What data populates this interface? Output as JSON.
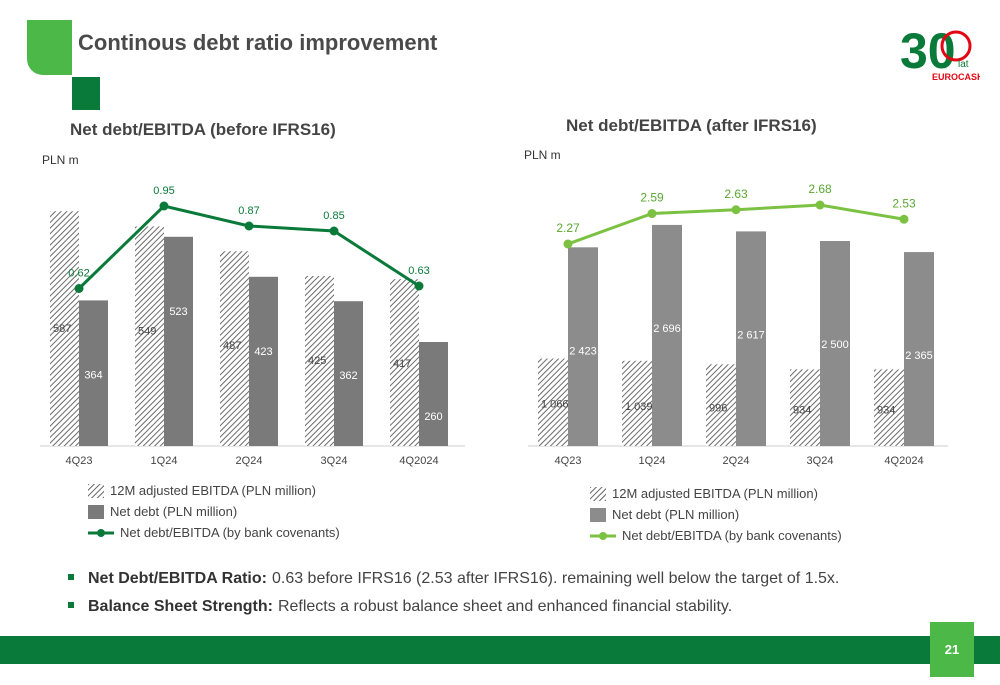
{
  "slide": {
    "title": "Continous debt ratio improvement",
    "page_number": "21",
    "colors": {
      "dark_green": "#0a7a3a",
      "light_green": "#4cb848",
      "dark_bar": "#7a7a7a",
      "mid_bar": "#8c8c8c"
    }
  },
  "logo": {
    "number": "30",
    "suffix": "lat",
    "brand": "EUROCASH"
  },
  "legend_left": {
    "items": [
      "12M adjusted EBITDA (PLN million)",
      "Net debt (PLN million)",
      "Net debt/EBITDA (by bank covenants)"
    ]
  },
  "legend_right": {
    "items": [
      "12M adjusted EBITDA (PLN million)",
      "Net debt (PLN million)",
      "Net debt/EBITDA (by bank covenants)"
    ]
  },
  "bullets": [
    {
      "label": "Net Debt/EBITDA Ratio:",
      "text": "0.63 before IFRS16 (2.53 after IFRS16). remaining well below the target of 1.5x."
    },
    {
      "label": "Balance Sheet Strength:",
      "text": "Reflects a robust balance sheet and enhanced financial stability."
    }
  ],
  "chart_data": [
    {
      "type": "bar",
      "title": "Net debt/EBITDA (before IFRS16)",
      "unit_label": "PLN m",
      "categories": [
        "4Q23",
        "1Q24",
        "2Q24",
        "3Q24",
        "4Q2024"
      ],
      "series": [
        {
          "name": "12M adjusted EBITDA (PLN million)",
          "kind": "bar-hatched",
          "values": [
            587,
            549,
            487,
            425,
            417
          ],
          "labels": [
            "587",
            "549",
            "487",
            "425",
            "417"
          ]
        },
        {
          "name": "Net debt (PLN million)",
          "kind": "bar",
          "values": [
            364,
            523,
            423,
            362,
            260
          ],
          "labels": [
            "364",
            "523",
            "423",
            "362",
            "260"
          ]
        },
        {
          "name": "Net debt/EBITDA (by bank covenants)",
          "kind": "line",
          "values": [
            0.62,
            0.95,
            0.87,
            0.85,
            0.63
          ],
          "labels": [
            "0.62",
            "0.95",
            "0.87",
            "0.85",
            "0.63"
          ]
        }
      ],
      "colors": {
        "line": "#0a7a3a",
        "bar": "#7a7a7a"
      },
      "legend_position": "bottom"
    },
    {
      "type": "bar",
      "title": "Net debt/EBITDA (after IFRS16)",
      "unit_label": "PLN m",
      "categories": [
        "4Q23",
        "1Q24",
        "2Q24",
        "3Q24",
        "4Q2024"
      ],
      "series": [
        {
          "name": "12M adjusted EBITDA (PLN million)",
          "kind": "bar-hatched",
          "values": [
            1066,
            1039,
            996,
            934,
            934
          ],
          "labels": [
            "1 066",
            "1 039",
            "996",
            "934",
            "934"
          ]
        },
        {
          "name": "Net debt (PLN million)",
          "kind": "bar",
          "values": [
            2423,
            2696,
            2617,
            2500,
            2365
          ],
          "labels": [
            "2 423",
            "2 696",
            "2 617",
            "2 500",
            "2 365"
          ]
        },
        {
          "name": "Net debt/EBITDA (by bank covenants)",
          "kind": "line",
          "values": [
            2.27,
            2.59,
            2.63,
            2.68,
            2.53
          ],
          "labels": [
            "2.27",
            "2.59",
            "2.63",
            "2.68",
            "2.53"
          ]
        }
      ],
      "colors": {
        "line": "#7cc242",
        "bar": "#8c8c8c"
      },
      "legend_position": "bottom"
    }
  ]
}
